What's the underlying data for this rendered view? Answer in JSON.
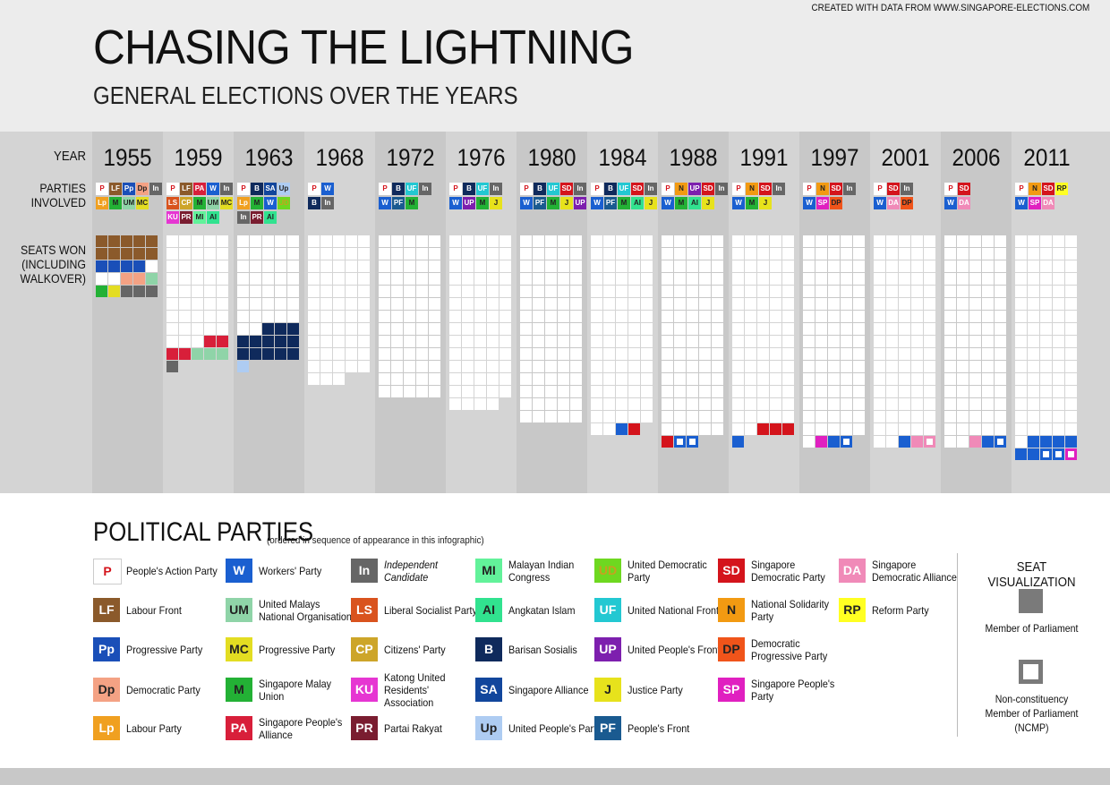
{
  "title": "CHASING THE LIGHTNING",
  "subtitle": "GENERAL ELECTIONS OVER THE YEARS",
  "row_labels": {
    "year": "YEAR",
    "parties_line1": "PARTIES",
    "parties_line2": "INVOLVED",
    "seats_line1": "SEATS WON",
    "seats_line2": "(INCLUDING",
    "seats_line3": "WALKOVER)"
  },
  "legend_title": "POLITICAL PARTIES",
  "legend_note": "(ordered in sequence of appearance in this infographic)",
  "seat_visualization": {
    "title": "SEAT VISUALIZATION",
    "mp_label": "Member of Parliament",
    "ncmp_line1": "Non-constituency",
    "ncmp_line2": "Member of Parliament",
    "ncmp_line3": "(NCMP)"
  },
  "footer": "CREATED WITH DATA FROM WWW.SINGAPORE-ELECTIONS.COM",
  "parties": {
    "P": {
      "name": "People's Action Party",
      "color": "#ffffff",
      "text": "#d4141c"
    },
    "LF": {
      "name": "Labour Front",
      "color": "#8b5a2b",
      "text": "#ffffff"
    },
    "Pp": {
      "name": "Progressive Party",
      "color": "#1a4fb8",
      "text": "#ffffff"
    },
    "Dp": {
      "name": "Democratic Party",
      "color": "#f4a284",
      "text": "#222222"
    },
    "Lp": {
      "name": "Labour Party",
      "color": "#f0a020",
      "text": "#ffffff"
    },
    "W": {
      "name": "Workers' Party",
      "color": "#1a5fd0",
      "text": "#ffffff"
    },
    "UM": {
      "name": "United Malays National Organisation",
      "color": "#8fd4a8",
      "text": "#222222"
    },
    "MC": {
      "name": "Progressive Party",
      "color": "#e3dd22",
      "text": "#222222"
    },
    "M": {
      "name": "Singapore Malay Union",
      "color": "#23b135",
      "text": "#222222"
    },
    "PA": {
      "name": "Singapore People's Alliance",
      "color": "#d81f3a",
      "text": "#ffffff"
    },
    "In": {
      "name": "Independent Candidate",
      "color": "#666666",
      "text": "#ffffff"
    },
    "LS": {
      "name": "Liberal Socialist Party",
      "color": "#d9531e",
      "text": "#ffffff"
    },
    "CP": {
      "name": "Citizens' Party",
      "color": "#cda529",
      "text": "#ffffff"
    },
    "KU": {
      "name": "Katong United Residents' Association",
      "color": "#e636d2",
      "text": "#ffffff"
    },
    "PR": {
      "name": "Partai Rakyat",
      "color": "#7a1d30",
      "text": "#ffffff"
    },
    "MI": {
      "name": "Malayan Indian Congress",
      "color": "#62f29a",
      "text": "#222222"
    },
    "AI": {
      "name": "Angkatan Islam",
      "color": "#31e28f",
      "text": "#222222"
    },
    "B": {
      "name": "Barisan Sosialis",
      "color": "#0f2a5c",
      "text": "#ffffff"
    },
    "SA": {
      "name": "Singapore Alliance",
      "color": "#12469c",
      "text": "#ffffff"
    },
    "Up": {
      "name": "United People's Party",
      "color": "#aeccf2",
      "text": "#222222"
    },
    "UD": {
      "name": "United Democratic Party",
      "color": "#6ed820",
      "text": "#c8a020"
    },
    "UF": {
      "name": "United National Front",
      "color": "#23c8d2",
      "text": "#ffffff"
    },
    "UP": {
      "name": "United People's Front",
      "color": "#7d1fae",
      "text": "#ffffff"
    },
    "J": {
      "name": "Justice Party",
      "color": "#e7e21c",
      "text": "#222222"
    },
    "PF": {
      "name": "People's Front",
      "color": "#1a5a90",
      "text": "#ffffff"
    },
    "SD": {
      "name": "Singapore Democratic Party",
      "color": "#d4141c",
      "text": "#ffffff"
    },
    "N": {
      "name": "National Solidarity Party",
      "color": "#f29a12",
      "text": "#222222"
    },
    "DP": {
      "name": "Democratic Progressive Party",
      "color": "#f0541a",
      "text": "#222222"
    },
    "SP": {
      "name": "Singapore People's Party",
      "color": "#e020c0",
      "text": "#ffffff"
    },
    "DA": {
      "name": "Singapore Democratic Alliance",
      "color": "#f08ab8",
      "text": "#ffffff"
    },
    "RP": {
      "name": "Reform Party",
      "color": "#ffff22",
      "text": "#222222"
    }
  },
  "legend_columns": [
    [
      "P",
      "LF",
      "Pp",
      "Dp",
      "Lp"
    ],
    [
      "W",
      "UM",
      "MC",
      "M",
      "PA"
    ],
    [
      "In",
      "LS",
      "CP",
      "KU",
      "PR"
    ],
    [
      "MI",
      "AI",
      "B",
      "SA",
      "Up"
    ],
    [
      "UD",
      "UF",
      "UP",
      "J",
      "PF"
    ],
    [
      "SD",
      "N",
      "DP",
      "SP"
    ],
    [
      "DA",
      "RP"
    ]
  ],
  "chart_data": {
    "type": "waffle",
    "title": "CHASING THE LIGHTNING",
    "subtitle": "GENERAL ELECTIONS OVER THE YEARS",
    "years": [
      {
        "year": "1955",
        "total_seats": 25,
        "parties": [
          [
            "P",
            "LF",
            "Pp",
            "Dp",
            "In"
          ],
          [
            "Lp",
            "M",
            "UM",
            "MC"
          ]
        ],
        "seats": [
          {
            "party": "LF",
            "n": 10
          },
          {
            "party": "Pp",
            "n": 4
          },
          {
            "party": "P",
            "n": 3
          },
          {
            "party": "Dp",
            "n": 2
          },
          {
            "party": "UM",
            "n": 1
          },
          {
            "party": "M",
            "n": 1
          },
          {
            "party": "MC",
            "n": 1
          },
          {
            "party": "In",
            "n": 3
          }
        ]
      },
      {
        "year": "1959",
        "total_seats": 51,
        "parties": [
          [
            "P",
            "LF",
            "PA",
            "W",
            "In"
          ],
          [
            "LS",
            "CP",
            "M",
            "UM",
            "MC"
          ],
          [
            "KU",
            "PR",
            "MI",
            "AI"
          ]
        ],
        "seats": [
          {
            "party": "P",
            "n": 43
          },
          {
            "party": "PA",
            "n": 4
          },
          {
            "party": "UM",
            "n": 3
          },
          {
            "party": "In",
            "n": 1
          }
        ]
      },
      {
        "year": "1963",
        "total_seats": 51,
        "parties": [
          [
            "P",
            "B",
            "SA",
            "Up"
          ],
          [
            "Lp",
            "M",
            "W",
            "UD"
          ],
          [
            "In",
            "PR",
            "AI"
          ]
        ],
        "seats": [
          {
            "party": "P",
            "n": 37
          },
          {
            "party": "B",
            "n": 13
          },
          {
            "party": "Up",
            "n": 1
          }
        ]
      },
      {
        "year": "1968",
        "total_seats": 58,
        "parties": [
          [
            "P",
            "W"
          ],
          [
            "B",
            "In"
          ]
        ],
        "seats": [
          {
            "party": "P",
            "n": 58
          }
        ]
      },
      {
        "year": "1972",
        "total_seats": 65,
        "parties": [
          [
            "P",
            "B",
            "UF",
            "In"
          ],
          [
            "W",
            "PF",
            "M"
          ]
        ],
        "seats": [
          {
            "party": "P",
            "n": 65
          }
        ]
      },
      {
        "year": "1976",
        "total_seats": 69,
        "parties": [
          [
            "P",
            "B",
            "UF",
            "In"
          ],
          [
            "W",
            "UP",
            "M",
            "J"
          ]
        ],
        "seats": [
          {
            "party": "P",
            "n": 69
          }
        ]
      },
      {
        "year": "1980",
        "total_seats": 75,
        "parties": [
          [
            "P",
            "B",
            "UF",
            "SD",
            "In"
          ],
          [
            "W",
            "PF",
            "M",
            "J",
            "UP"
          ]
        ],
        "seats": [
          {
            "party": "P",
            "n": 75
          }
        ]
      },
      {
        "year": "1984",
        "total_seats": 79,
        "parties": [
          [
            "P",
            "B",
            "UF",
            "SD",
            "In"
          ],
          [
            "W",
            "PF",
            "M",
            "AI",
            "J"
          ]
        ],
        "seats": [
          {
            "party": "P",
            "n": 77
          },
          {
            "party": "W",
            "n": 1
          },
          {
            "party": "SD",
            "n": 1
          }
        ]
      },
      {
        "year": "1988",
        "total_seats": 81,
        "parties": [
          [
            "P",
            "N",
            "UP",
            "SD",
            "In"
          ],
          [
            "W",
            "M",
            "AI",
            "J"
          ]
        ],
        "seats": [
          {
            "party": "P",
            "n": 80
          },
          {
            "party": "SD",
            "n": 1
          },
          {
            "party": "W",
            "n": 2,
            "ncmp": true
          }
        ]
      },
      {
        "year": "1991",
        "total_seats": 81,
        "parties": [
          [
            "P",
            "N",
            "SD",
            "In"
          ],
          [
            "W",
            "M",
            "J"
          ]
        ],
        "seats": [
          {
            "party": "P",
            "n": 77
          },
          {
            "party": "SD",
            "n": 3
          },
          {
            "party": "W",
            "n": 1
          }
        ]
      },
      {
        "year": "1997",
        "total_seats": 83,
        "parties": [
          [
            "P",
            "N",
            "SD",
            "In"
          ],
          [
            "W",
            "SP",
            "DP"
          ]
        ],
        "seats": [
          {
            "party": "P",
            "n": 81
          },
          {
            "party": "SP",
            "n": 1
          },
          {
            "party": "W",
            "n": 1
          },
          {
            "party": "W",
            "n": 1,
            "ncmp": true
          }
        ]
      },
      {
        "year": "2001",
        "total_seats": 84,
        "parties": [
          [
            "P",
            "SD",
            "In"
          ],
          [
            "W",
            "DA",
            "DP"
          ]
        ],
        "seats": [
          {
            "party": "P",
            "n": 82
          },
          {
            "party": "W",
            "n": 1
          },
          {
            "party": "DA",
            "n": 1
          },
          {
            "party": "DA",
            "n": 1,
            "ncmp": true
          }
        ]
      },
      {
        "year": "2006",
        "total_seats": 84,
        "parties": [
          [
            "P",
            "SD"
          ],
          [
            "W",
            "DA"
          ]
        ],
        "seats": [
          {
            "party": "P",
            "n": 82
          },
          {
            "party": "DA",
            "n": 1
          },
          {
            "party": "W",
            "n": 1
          },
          {
            "party": "W",
            "n": 1,
            "ncmp": true
          }
        ]
      },
      {
        "year": "2011",
        "total_seats": 87,
        "parties": [
          [
            "P",
            "N",
            "SD",
            "RP"
          ],
          [
            "W",
            "SP",
            "DA"
          ]
        ],
        "seats": [
          {
            "party": "P",
            "n": 81
          },
          {
            "party": "W",
            "n": 6
          },
          {
            "party": "W",
            "n": 2,
            "ncmp": true
          },
          {
            "party": "SP",
            "n": 1,
            "ncmp": true
          }
        ]
      }
    ]
  }
}
